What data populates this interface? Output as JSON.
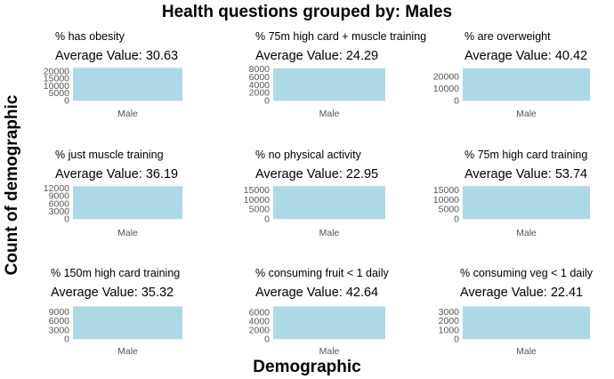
{
  "title": "Health questions grouped by: Males",
  "xlabel": "Demographic",
  "ylabel": "Count of demographic",
  "colors": {
    "bar": "#add8e6",
    "grid": "#e5e5e5",
    "tick_text": "#555555"
  },
  "chart_data": [
    {
      "type": "bar",
      "panel_title": "% has obesity",
      "annotation": "Average Value: 30.63",
      "categories": [
        "Male"
      ],
      "values": [
        22000
      ],
      "ylim": [
        0,
        23500
      ],
      "yticks": [
        0,
        5000,
        10000,
        15000,
        20000
      ],
      "ytick_labels": [
        "0",
        "5000",
        "10000",
        "15000",
        "20000"
      ]
    },
    {
      "type": "bar",
      "panel_title": "% 75m high card + muscle training",
      "annotation": "Average Value: 24.29",
      "categories": [
        "Male"
      ],
      "values": [
        8200
      ],
      "ylim": [
        0,
        8800
      ],
      "yticks": [
        0,
        2000,
        4000,
        6000,
        8000
      ],
      "ytick_labels": [
        "0",
        "2000",
        "4000",
        "6000",
        "8000"
      ]
    },
    {
      "type": "bar",
      "panel_title": "% are overweight",
      "annotation": "Average Value: 40.42",
      "categories": [
        "Male"
      ],
      "values": [
        27000
      ],
      "ylim": [
        0,
        29000
      ],
      "yticks": [
        0,
        10000,
        20000
      ],
      "ytick_labels": [
        "0",
        "10000",
        "20000"
      ]
    },
    {
      "type": "bar",
      "panel_title": "% just muscle training",
      "annotation": "Average Value: 36.19",
      "categories": [
        "Male"
      ],
      "values": [
        12800
      ],
      "ylim": [
        0,
        13600
      ],
      "yticks": [
        0,
        3000,
        6000,
        9000,
        12000
      ],
      "ytick_labels": [
        "0",
        "3000",
        "6000",
        "9000",
        "12000"
      ]
    },
    {
      "type": "bar",
      "panel_title": "% no physical activity",
      "annotation": "Average Value: 22.95",
      "categories": [
        "Male"
      ],
      "values": [
        17000
      ],
      "ylim": [
        0,
        18000
      ],
      "yticks": [
        0,
        5000,
        10000,
        15000
      ],
      "ytick_labels": [
        "0",
        "5000",
        "10000",
        "15000"
      ]
    },
    {
      "type": "bar",
      "panel_title": "% 75m high card training",
      "annotation": "Average Value: 53.74",
      "categories": [
        "Male"
      ],
      "values": [
        17000
      ],
      "ylim": [
        0,
        18000
      ],
      "yticks": [
        0,
        5000,
        10000,
        15000
      ],
      "ytick_labels": [
        "0",
        "5000",
        "10000",
        "15000"
      ]
    },
    {
      "type": "bar",
      "panel_title": "% 150m high card training",
      "annotation": "Average Value: 35.32",
      "categories": [
        "Male"
      ],
      "values": [
        10800
      ],
      "ylim": [
        0,
        11500
      ],
      "yticks": [
        0,
        3000,
        6000,
        9000
      ],
      "ytick_labels": [
        "0",
        "3000",
        "6000",
        "9000"
      ]
    },
    {
      "type": "bar",
      "panel_title": "% consuming fruit < 1 daily",
      "annotation": "Average Value: 42.64",
      "categories": [
        "Male"
      ],
      "values": [
        7300
      ],
      "ylim": [
        0,
        7800
      ],
      "yticks": [
        0,
        2000,
        4000,
        6000
      ],
      "ytick_labels": [
        "0",
        "2000",
        "4000",
        "6000"
      ]
    },
    {
      "type": "bar",
      "panel_title": "% consuming veg < 1 daily",
      "annotation": "Average Value: 22.41",
      "categories": [
        "Male"
      ],
      "values": [
        3600
      ],
      "ylim": [
        0,
        3850
      ],
      "yticks": [
        0,
        1000,
        2000,
        3000
      ],
      "ytick_labels": [
        "0",
        "1000",
        "2000",
        "3000"
      ]
    }
  ]
}
